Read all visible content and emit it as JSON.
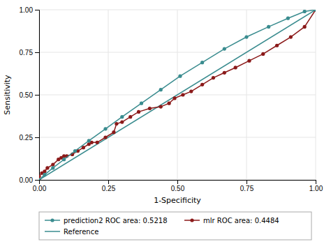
{
  "chart_data": {
    "type": "line",
    "xlabel": "1-Specificity",
    "ylabel": "Sensitivity",
    "series": [
      {
        "name": "prediction2 ROC area: 0.5218",
        "color": "#3a8c8f",
        "marker": "circle",
        "line_style": "solid",
        "x": [
          0.0,
          0.02,
          0.05,
          0.09,
          0.13,
          0.18,
          0.24,
          0.3,
          0.37,
          0.44,
          0.51,
          0.59,
          0.67,
          0.75,
          0.83,
          0.9,
          0.96,
          1.0
        ],
        "values": [
          0.0,
          0.03,
          0.07,
          0.12,
          0.17,
          0.23,
          0.3,
          0.37,
          0.45,
          0.53,
          0.61,
          0.69,
          0.77,
          0.84,
          0.9,
          0.95,
          0.99,
          1.0
        ]
      },
      {
        "name": "mlr ROC area: 0.4484",
        "color": "#8b1a1a",
        "marker": "circle",
        "line_style": "solid",
        "x": [
          0.0,
          0.0,
          0.01,
          0.02,
          0.03,
          0.05,
          0.07,
          0.08,
          0.09,
          0.1,
          0.12,
          0.14,
          0.16,
          0.18,
          0.19,
          0.21,
          0.24,
          0.27,
          0.28,
          0.3,
          0.33,
          0.36,
          0.4,
          0.44,
          0.47,
          0.49,
          0.52,
          0.55,
          0.59,
          0.63,
          0.67,
          0.71,
          0.76,
          0.81,
          0.86,
          0.91,
          0.96,
          1.0
        ],
        "values": [
          0.0,
          0.02,
          0.04,
          0.05,
          0.07,
          0.09,
          0.12,
          0.13,
          0.14,
          0.14,
          0.15,
          0.17,
          0.19,
          0.21,
          0.22,
          0.22,
          0.25,
          0.28,
          0.33,
          0.34,
          0.37,
          0.4,
          0.42,
          0.43,
          0.45,
          0.48,
          0.5,
          0.52,
          0.56,
          0.6,
          0.63,
          0.66,
          0.7,
          0.74,
          0.79,
          0.84,
          0.9,
          1.0
        ]
      },
      {
        "name": "Reference",
        "color": "#3a8c8f",
        "line_style": "solid",
        "x": [
          0.0,
          1.0
        ],
        "values": [
          0.0,
          1.0
        ]
      }
    ],
    "xlim": [
      0.0,
      1.0
    ],
    "ylim": [
      0.0,
      1.0
    ],
    "xticks": [
      {
        "value": 0,
        "label": "0.00"
      },
      0.25,
      {
        "value": 0.5,
        "label": "0.50"
      },
      0.75,
      {
        "value": 1,
        "label": "1.00"
      }
    ],
    "yticks": [
      {
        "value": 0,
        "label": "0.00"
      },
      0.25,
      {
        "value": 0.5,
        "label": "0.50"
      },
      0.75,
      {
        "value": 1,
        "label": "1.00"
      }
    ],
    "grid": true,
    "legend": "bottom"
  }
}
